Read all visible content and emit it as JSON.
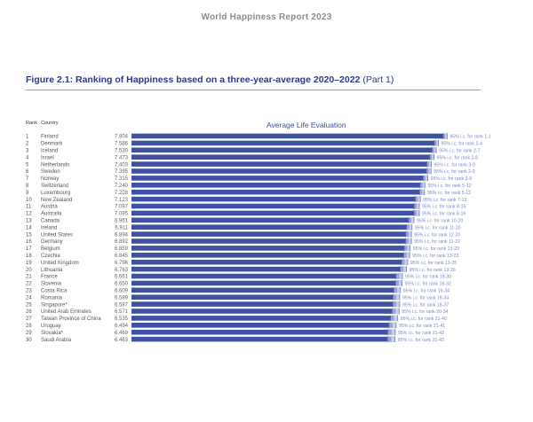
{
  "header": {
    "report_title": "World Happiness Report 2023"
  },
  "figure": {
    "title": "Figure 2.1: Ranking of Happiness based on a three-year-average 2020–2022",
    "part": "(Part 1)"
  },
  "columns": {
    "rank": "Rank",
    "country": "Country"
  },
  "chart_data": {
    "type": "bar",
    "orientation": "horizontal",
    "title": "Average Life Evaluation",
    "rank_header": "Rank",
    "country_header": "Country",
    "xlim": [
      0,
      8
    ],
    "grid": false,
    "rows": [
      {
        "rank": "1",
        "country": "Finland",
        "score": 7.804,
        "ci": "95% i.c. for rank 1-1"
      },
      {
        "rank": "2",
        "country": "Denmark",
        "score": 7.586,
        "ci": "95% i.c. for rank 2-4"
      },
      {
        "rank": "3",
        "country": "Iceland",
        "score": 7.53,
        "ci": "95% i.c. for rank 2-7"
      },
      {
        "rank": "4",
        "country": "Israel",
        "score": 7.473,
        "ci": "95% i.c. for rank 2-8"
      },
      {
        "rank": "5",
        "country": "Netherlands",
        "score": 7.403,
        "ci": "95% i.c. for rank 3-9"
      },
      {
        "rank": "6",
        "country": "Sweden",
        "score": 7.395,
        "ci": "95% i.c. for rank 2-9"
      },
      {
        "rank": "7",
        "country": "Norway",
        "score": 7.315,
        "ci": "95% i.c. for rank 3-9"
      },
      {
        "rank": "8",
        "country": "Switzerland",
        "score": 7.24,
        "ci": "95% i.c. for rank 5-12"
      },
      {
        "rank": "9",
        "country": "Luxembourg",
        "score": 7.228,
        "ci": "95% i.c. for rank 5-12"
      },
      {
        "rank": "10",
        "country": "New Zealand",
        "score": 7.123,
        "ci": "95% i.c. for rank 7-13"
      },
      {
        "rank": "11",
        "country": "Austria",
        "score": 7.097,
        "ci": "95% i.c. for rank 8-15"
      },
      {
        "rank": "12",
        "country": "Australia",
        "score": 7.095,
        "ci": "95% i.c. for rank 8-16"
      },
      {
        "rank": "13",
        "country": "Canada",
        "score": 6.961,
        "ci": "95% i.c. for rank 10-20"
      },
      {
        "rank": "14",
        "country": "Ireland",
        "score": 6.911,
        "ci": "95% i.c. for rank 11-20"
      },
      {
        "rank": "15",
        "country": "United States",
        "score": 6.894,
        "ci": "95% i.c. for rank 12-20"
      },
      {
        "rank": "16",
        "country": "Germany",
        "score": 6.892,
        "ci": "95% i.c. for rank 11-22"
      },
      {
        "rank": "17",
        "country": "Belgium",
        "score": 6.859,
        "ci": "95% i.c. for rank 13-20"
      },
      {
        "rank": "18",
        "country": "Czechia",
        "score": 6.845,
        "ci": "95% i.c. for rank 13-23"
      },
      {
        "rank": "19",
        "country": "United Kingdom",
        "score": 6.796,
        "ci": "95% i.c. for rank 13-25"
      },
      {
        "rank": "20",
        "country": "Lithuania",
        "score": 6.763,
        "ci": "95% i.c. for rank 13-26"
      },
      {
        "rank": "21",
        "country": "France",
        "score": 6.661,
        "ci": "95% i.c. for rank 18-30"
      },
      {
        "rank": "22",
        "country": "Slovenia",
        "score": 6.65,
        "ci": "95% i.c. for rank 18-32"
      },
      {
        "rank": "23",
        "country": "Costa Rica",
        "score": 6.609,
        "ci": "95% i.c. for rank 19-34"
      },
      {
        "rank": "24",
        "country": "Romania",
        "score": 6.589,
        "ci": "95% i.c. for rank 19-34"
      },
      {
        "rank": "25",
        "country": "Singapore*",
        "score": 6.587,
        "ci": "95% i.c. for rank 18-37"
      },
      {
        "rank": "26",
        "country": "United Arab Emirates",
        "score": 6.571,
        "ci": "95% i.c. for rank 20-34"
      },
      {
        "rank": "27",
        "country": "Taiwan Province of China",
        "score": 6.535,
        "ci": "95% i.c. for rank 21-40"
      },
      {
        "rank": "28",
        "country": "Uruguay",
        "score": 6.494,
        "ci": "95% i.c. for rank 21-41"
      },
      {
        "rank": "29",
        "country": "Slovakia*",
        "score": 6.469,
        "ci": "95% i.c. for rank 21-42"
      },
      {
        "rank": "30",
        "country": "Saudi Arabia",
        "score": 6.463,
        "ci": "95% i.c. for rank 21-42"
      }
    ]
  },
  "colors": {
    "bar": "#3f51a3",
    "ci_box": "#b9c0de",
    "ci_line": "#5b6bb5",
    "title": "#2b3a85"
  }
}
